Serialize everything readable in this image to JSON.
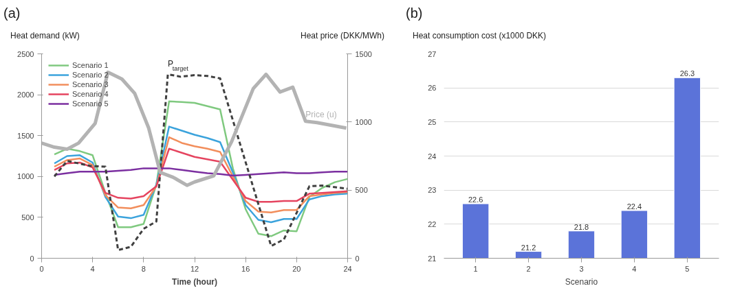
{
  "chart_data": [
    {
      "type": "line",
      "title": "(a)",
      "xlabel": "Time (hour)",
      "ylabel": "Heat demand (kW)",
      "y2label": "Heat price (DKK/MWh)",
      "xlim": [
        0,
        24
      ],
      "xticks": [
        0,
        4,
        8,
        12,
        16,
        20,
        24
      ],
      "ylim": [
        0,
        2500
      ],
      "yticks": [
        0,
        500,
        1000,
        1500,
        2000,
        2500
      ],
      "y2lim": [
        0,
        1500
      ],
      "y2ticks": [
        0,
        500,
        1000,
        1500
      ],
      "grid": false,
      "legend": "top left",
      "marker": "none",
      "line_style": "solid",
      "series": [
        {
          "name": "Scenario 1",
          "color": "#7fc97f",
          "x": [
            1,
            2,
            3,
            4,
            5,
            6,
            7,
            8,
            9,
            10,
            11,
            12,
            13,
            14,
            15,
            16,
            17,
            18,
            19,
            20,
            21,
            22,
            23,
            24
          ],
          "values": [
            1270,
            1340,
            1310,
            1260,
            800,
            380,
            380,
            420,
            900,
            1920,
            1910,
            1900,
            1860,
            1820,
            1100,
            600,
            300,
            270,
            340,
            330,
            750,
            860,
            930,
            970
          ]
        },
        {
          "name": "Scenario 2",
          "color": "#3ba3dc",
          "x": [
            1,
            2,
            3,
            4,
            5,
            6,
            7,
            8,
            9,
            10,
            11,
            12,
            13,
            14,
            15,
            16,
            17,
            18,
            19,
            20,
            21,
            22,
            23,
            24
          ],
          "values": [
            1160,
            1250,
            1260,
            1170,
            750,
            510,
            490,
            530,
            900,
            1610,
            1560,
            1510,
            1470,
            1420,
            1050,
            650,
            470,
            440,
            480,
            480,
            720,
            760,
            780,
            790
          ]
        },
        {
          "name": "Scenario 3",
          "color": "#f28e5c",
          "x": [
            1,
            2,
            3,
            4,
            5,
            6,
            7,
            8,
            9,
            10,
            11,
            12,
            13,
            14,
            15,
            16,
            17,
            18,
            19,
            20,
            21,
            22,
            23,
            24
          ],
          "values": [
            1120,
            1200,
            1220,
            1140,
            770,
            620,
            610,
            650,
            880,
            1480,
            1410,
            1370,
            1340,
            1300,
            1000,
            700,
            570,
            560,
            590,
            590,
            760,
            780,
            800,
            810
          ]
        },
        {
          "name": "Scenario 4",
          "color": "#e5445f",
          "x": [
            1,
            2,
            3,
            4,
            5,
            6,
            7,
            8,
            9,
            10,
            11,
            12,
            13,
            14,
            15,
            16,
            17,
            18,
            19,
            20,
            21,
            22,
            23,
            24
          ],
          "values": [
            1080,
            1160,
            1170,
            1110,
            800,
            740,
            730,
            760,
            880,
            1340,
            1290,
            1240,
            1210,
            1180,
            960,
            740,
            690,
            690,
            700,
            700,
            790,
            800,
            810,
            820
          ]
        },
        {
          "name": "Scenario 5",
          "color": "#7b2fa0",
          "x": [
            1,
            2,
            3,
            4,
            5,
            6,
            7,
            8,
            9,
            10,
            11,
            12,
            13,
            14,
            15,
            16,
            17,
            18,
            19,
            20,
            21,
            22,
            23,
            24
          ],
          "values": [
            1020,
            1040,
            1060,
            1060,
            1060,
            1070,
            1080,
            1100,
            1100,
            1100,
            1080,
            1060,
            1040,
            1030,
            1010,
            1020,
            1030,
            1040,
            1050,
            1040,
            1040,
            1050,
            1060,
            1060
          ]
        },
        {
          "name": "P$_{target}$",
          "color": "#404040",
          "line_style": "dashed",
          "x": [
            1,
            2,
            2.9,
            3.8,
            5,
            6,
            7,
            8,
            9,
            9.9,
            10.9,
            12,
            13,
            14,
            18,
            19,
            21,
            22,
            24
          ],
          "values": [
            1000,
            1190,
            1160,
            1130,
            1120,
            100,
            140,
            360,
            450,
            2250,
            2220,
            2240,
            2230,
            2200,
            150,
            230,
            880,
            890,
            850
          ]
        },
        {
          "name": "Price (u)",
          "color": "#b3b3b3",
          "axis": "y2",
          "x": [
            0,
            1,
            2,
            2.9,
            4.2,
            5.2,
            6.3,
            7.3,
            8.4,
            9.3,
            10.3,
            11.4,
            12,
            13.5,
            14.9,
            16.6,
            17.6,
            18.7,
            19.7,
            20.7,
            21.6,
            23.9
          ],
          "values": [
            845,
            815,
            800,
            845,
            990,
            1365,
            1315,
            1210,
            955,
            630,
            595,
            535,
            560,
            605,
            855,
            1245,
            1350,
            1220,
            1255,
            1005,
            995,
            955
          ]
        }
      ]
    },
    {
      "type": "bar",
      "title": "(b)",
      "xlabel": "Scenario",
      "ylabel": "Heat consumption cost (x1000 DKK)",
      "categories": [
        "1",
        "2",
        "3",
        "4",
        "5"
      ],
      "values": [
        22.6,
        21.2,
        21.8,
        22.4,
        26.3
      ],
      "color": "#5b73d9",
      "ylim": [
        21,
        27
      ],
      "yticks": [
        21,
        22,
        23,
        24,
        25,
        26,
        27
      ],
      "grid": "y",
      "data_labels": true
    }
  ]
}
